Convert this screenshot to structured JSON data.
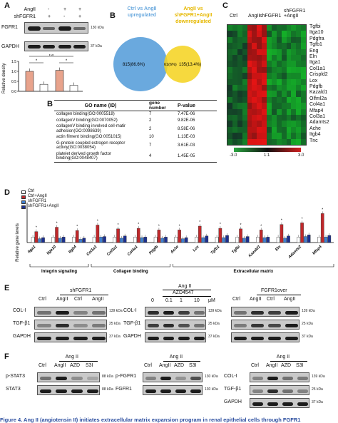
{
  "panelA": {
    "letter": "A",
    "rows": [
      {
        "label": "AngII",
        "marks": [
          "-",
          "-",
          "+",
          "+"
        ]
      },
      {
        "label": "shFGFR1",
        "marks": [
          "-",
          "+",
          "-",
          "+"
        ]
      }
    ],
    "blots": [
      {
        "label": "FGFR1",
        "kda": "130 kDa"
      },
      {
        "label": "GAPDH",
        "kda": "37 kDa"
      }
    ],
    "ylabel": "Relative density",
    "yticks": [
      "0.0",
      "0.5",
      "1.0",
      "1.5"
    ],
    "bars": [
      1.0,
      0.35,
      1.05,
      0.3
    ],
    "bar_colors": [
      "#e8a38c",
      "#ffffff",
      "#e8a38c",
      "#ffffff"
    ],
    "sig": [
      "ns",
      "*",
      "*"
    ]
  },
  "panelB": {
    "letter": "B",
    "left_title": "Ctrl vs AngII upregulated",
    "right_title": "AngII vs shFGFR1+AngII downregulated",
    "left_count": "815(86.6%)",
    "overlap_count": "61(6%)",
    "right_count": "135(13.4%)",
    "left_color": "#6aa9de",
    "right_color": "#f4d21c"
  },
  "panelC": {
    "letter": "C",
    "columns": [
      "Ctrl",
      "AngII",
      "shFGFR1",
      "shFGFR1 +AngII"
    ],
    "genes": [
      "Tgfbi",
      "Itga10",
      "Pdgfra",
      "Tgfb1",
      "Eng",
      "Eln",
      "Itga1",
      "Col1a1",
      "Crispld2",
      "Lox",
      "Pdgfb",
      "Kazald1",
      "Olfml2a",
      "Col4a1",
      "Mfap4",
      "Col3a1",
      "Adamts2",
      "Ache",
      "Itgb4",
      "Tnc"
    ],
    "scale_labels": [
      "-3.0",
      "1:1",
      "3.0"
    ]
  },
  "panelGO": {
    "headers": [
      "GO name (ID)",
      "gene number",
      "P-value"
    ],
    "rows": [
      [
        "collagen binding(GO:0005518)",
        "7",
        "7.47E-06"
      ],
      [
        "collagenV binding(GO:0070052)",
        "2",
        "9.82E-06"
      ],
      [
        "collagenV binding involved cell-matir adhesion(GO:0098639)",
        "2",
        "8.58E-06"
      ],
      [
        "actin filment binding(GO:0051015)",
        "10",
        "1.13E-03"
      ],
      [
        "G-protein coupled estrogen receptor activiy(GO:0038054)",
        "7",
        "3.61E-03"
      ],
      [
        "platelet derived growth factor binding(GO:0048407)",
        "4",
        "1.45E-05"
      ]
    ]
  },
  "panelD": {
    "letter": "D",
    "ylabel": "Relative gene levels",
    "legend": [
      "Ctrl",
      "Ctrl+AngII",
      "shFGFR1",
      "shFGFR1+AngII"
    ],
    "colors": [
      "#ffffff",
      "#c0282b",
      "#3f7fd0",
      "#1c2f8f"
    ],
    "genes": [
      "Itga1",
      "Itga10",
      "Itgb4",
      "Col1a1",
      "Col3a1",
      "Col4a1",
      "Pdgfb",
      "Ache",
      "Lox",
      "Tgfb1",
      "Tgfbi",
      "Kazald1",
      "Eln",
      "Adamts2",
      "Mfap4"
    ],
    "groups": [
      {
        "label": "Integrin signaling"
      },
      {
        "label": "Collagen binding"
      },
      {
        "label": "Extracellular matrix"
      }
    ],
    "chart_data": {
      "type": "bar",
      "categories": [
        "Itga1",
        "Itga10",
        "Itgb4",
        "Col1a1",
        "Col3a1",
        "Col4a1",
        "Pdgfb",
        "Ache",
        "Lox",
        "Tgfb1",
        "Tgfbi",
        "Kazald1",
        "Eln",
        "Adamts2",
        "Mfap4"
      ],
      "series": [
        {
          "name": "Ctrl",
          "values": [
            1,
            1,
            1,
            1,
            1,
            1,
            1,
            1,
            1,
            1,
            1,
            1,
            1,
            1,
            1
          ]
        },
        {
          "name": "Ctrl+AngII",
          "values": [
            2.0,
            2.8,
            2.2,
            3.2,
            2.5,
            2.6,
            2.3,
            2.3,
            3.0,
            2.6,
            2.5,
            2.3,
            3.3,
            3.6,
            5.3
          ]
        },
        {
          "name": "shFGFR1",
          "values": [
            0.7,
            0.8,
            0.6,
            1.0,
            0.8,
            0.9,
            0.8,
            0.7,
            0.9,
            0.9,
            0.8,
            0.9,
            0.8,
            1.1,
            1.0
          ]
        },
        {
          "name": "shFGFR1+AngII",
          "values": [
            0.9,
            1.0,
            0.8,
            1.1,
            1.2,
            1.0,
            1.0,
            0.9,
            1.2,
            1.3,
            1.1,
            1.0,
            1.2,
            1.4,
            1.3
          ]
        }
      ],
      "ylim": [
        0,
        6
      ]
    }
  },
  "panelE": {
    "letter": "E",
    "blot1": {
      "header": "shFGFR1",
      "lanes": [
        "Ctrl",
        "AngII",
        "Ctrl",
        "AngII"
      ]
    },
    "blot2": {
      "header_top": "Ang II",
      "header": "AZD4547",
      "lanes": [
        "0",
        "0.1",
        "1",
        "10",
        "μM"
      ]
    },
    "blot3": {
      "header": "FGFR1over",
      "lanes": [
        "Ctrl",
        "AngII",
        "Ctrl",
        "AngII"
      ]
    },
    "rows": [
      {
        "label": "COL-I",
        "kda": "139 kDa"
      },
      {
        "label": "TGF-β1",
        "kda": "25 kDa"
      },
      {
        "label": "GAPDH",
        "kda": "37 kDa"
      }
    ]
  },
  "panelF": {
    "letter": "F",
    "header": "Ang II",
    "lanes": [
      "Ctrl",
      "AngII",
      "AZD",
      "S3I"
    ],
    "blot1_rows": [
      {
        "label": "p-STAT3",
        "kda": "88 kDa"
      },
      {
        "label": "STAT3",
        "kda": "88 kDa"
      }
    ],
    "blot2_rows": [
      {
        "label": "p-FGFR1",
        "kda": "130 kDa"
      },
      {
        "label": "FGFR1",
        "kda": "130 kDa"
      }
    ],
    "blot3_rows": [
      {
        "label": "COL-I",
        "kda": "139 kDa"
      },
      {
        "label": "TGF-β1",
        "kda": "25 kDa"
      },
      {
        "label": "GAPDH",
        "kda": "37 kDa"
      }
    ]
  },
  "caption": "Figure 4. Ang II (angiotensin II) initiates extracellular matrix expansion program in renal epithelial cells through FGFR1"
}
